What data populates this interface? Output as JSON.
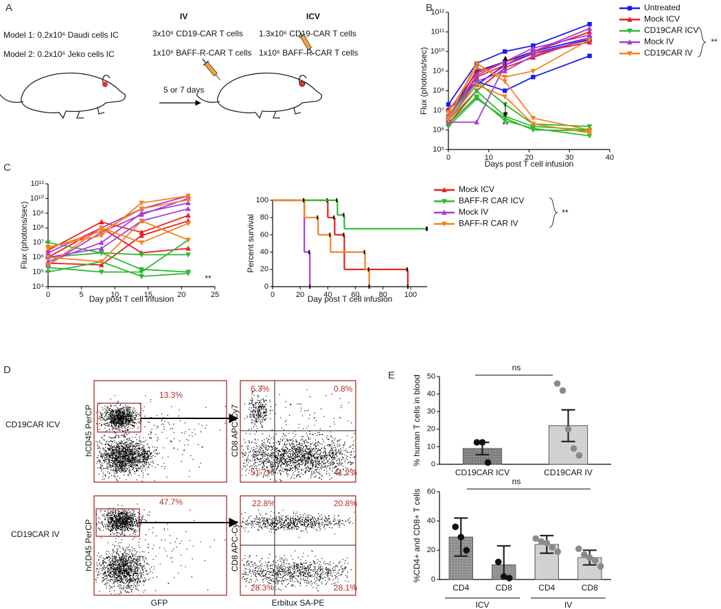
{
  "panel_labels": [
    "A",
    "B",
    "C",
    "D",
    "E"
  ],
  "schematic": {
    "models": [
      "Model 1: 0.2x10⁶ Daudi cells IC",
      "Model 2: 0.2x10⁶ Jeko cells IC"
    ],
    "iv": {
      "title": "IV",
      "doses": [
        "3x10⁶ CD19-CAR T cells",
        "1x10⁶ BAFF-R-CAR T cells"
      ]
    },
    "icv": {
      "title": "ICV",
      "doses": [
        "1.3x10⁶ CD19-CAR T cells",
        "1x10⁶ BAFF-R-CAR T cells"
      ]
    },
    "interval": "5 or 7 days"
  },
  "flow": {
    "rows": [
      {
        "label": "CD19CAR ICV",
        "gate": "13.3%",
        "quadrants": [
          "6.3%",
          "0.8%",
          "51.7%",
          "41.2%"
        ]
      },
      {
        "label": "CD19CAR IV",
        "gate": "47.7%",
        "quadrants": [
          "22.8%",
          "20.8%",
          "28.3%",
          "28.1%"
        ]
      }
    ],
    "x_labels": [
      "GFP",
      "Erbitux SA-PE"
    ],
    "y_labels": [
      "hCD45 PerCP",
      "CD8 APC-Cy7"
    ]
  },
  "chart_data": [
    {
      "type": "line",
      "yscale": "log",
      "ylabel": "Flux (photons/sec)",
      "xlabel": "Days post T cell infusion",
      "x": [
        0,
        7,
        14,
        21,
        35
      ],
      "xlim": [
        0,
        40
      ],
      "xticks": [
        0,
        10,
        20,
        30,
        40
      ],
      "ylim": [
        100000.0,
        1000000000000.0
      ],
      "yticks": [
        {
          "value": 100000.0,
          "label": "10⁵"
        },
        {
          "value": 1000000.0,
          "label": "10⁶"
        },
        {
          "value": 10000000.0,
          "label": "10⁷"
        },
        {
          "value": 100000000.0,
          "label": "10⁸"
        },
        {
          "value": 1000000000.0,
          "label": "10⁹"
        },
        {
          "value": 10000000000.0,
          "label": "10¹⁰"
        },
        {
          "value": 100000000000.0,
          "label": "10¹¹"
        },
        {
          "value": 1000000000000.0,
          "label": "10¹²"
        }
      ],
      "legend": "right",
      "annotations": [
        "**",
        "**"
      ],
      "series": [
        {
          "name": "Untreated",
          "color": "#1a1aee",
          "marker": "square",
          "values": [
            [
              20000000.0,
              2500000000.0,
              10000000000.0,
              20000000000.0,
              250000000000.0
            ],
            [
              10000000.0,
              300000000.0,
              100000000.0,
              500000000.0,
              6000000000.0
            ],
            [
              5000000.0,
              1000000000.0,
              3000000000.0,
              10000000000.0,
              50000000000.0
            ],
            [
              3000000.0,
              200000000.0,
              2000000000.0,
              8000000000.0,
              40000000000.0
            ]
          ]
        },
        {
          "name": "Mock ICV",
          "color": "#ee1c1c",
          "marker": "triangle",
          "values": [
            [
              4000000.0,
              500000000.0,
              2000000000.0,
              10000000000.0,
              100000000000.0
            ],
            [
              2000000.0,
              100000000.0,
              1500000000.0,
              5000000000.0,
              50000000000.0
            ],
            [
              10000000.0,
              800000000.0,
              3000000000.0,
              8000000000.0,
              30000000000.0
            ]
          ]
        },
        {
          "name": "CD19CAR ICV",
          "color": "#2db82d",
          "marker": "triangle-down",
          "values": [
            [
              3000000.0,
              100000000.0,
              5000000.0,
              1500000.0,
              1000000.0
            ],
            [
              2000000.0,
              50000000.0,
              3000000.0,
              1200000.0,
              500000.0
            ],
            [
              5000000.0,
              300000000.0,
              20000000.0,
              2000000.0,
              1500000.0
            ],
            [
              1500000.0,
              40000000.0,
              4000000.0,
              1000000.0,
              900000.0
            ]
          ]
        },
        {
          "name": "Mock IV",
          "color": "#a83bdb",
          "marker": "triangle",
          "values": [
            [
              2500000.0,
              2500000.0,
              2000000000.0,
              10000000000.0,
              150000000000.0
            ],
            [
              5000000.0,
              600000000.0,
              3000000000.0,
              15000000000.0,
              70000000000.0
            ],
            [
              3000000.0,
              300000000.0,
              1000000000.0,
              6000000000.0,
              50000000000.0
            ]
          ]
        },
        {
          "name": "CD19CAR IV",
          "color": "#f7801e",
          "marker": "triangle-down",
          "values": [
            [
              4000000.0,
              2500000000.0,
              300000000.0,
              4000000.0,
              1000000.0
            ],
            [
              8000000.0,
              1500000000.0,
              500000000.0,
              1000000000.0,
              40000000000.0
            ],
            [
              3000000.0,
              200000000.0,
              50000000.0,
              2000000.0,
              700000.0
            ]
          ]
        }
      ]
    },
    {
      "type": "line",
      "yscale": "log",
      "ylabel": "Flux (photons/sec)",
      "xlabel": "Day post T cell infusion",
      "x": [
        0,
        8,
        14,
        21
      ],
      "xlim": [
        0,
        25
      ],
      "xticks": [
        0,
        5,
        10,
        15,
        20,
        25
      ],
      "ylim": [
        10000.0,
        100000000000.0
      ],
      "yticks": [
        {
          "value": 10000.0,
          "label": "10⁴"
        },
        {
          "value": 100000.0,
          "label": "10⁵"
        },
        {
          "value": 1000000.0,
          "label": "10⁶"
        },
        {
          "value": 10000000.0,
          "label": "10⁷"
        },
        {
          "value": 100000000.0,
          "label": "10⁸"
        },
        {
          "value": 1000000000.0,
          "label": "10⁹"
        },
        {
          "value": 10000000000.0,
          "label": "10¹⁰"
        },
        {
          "value": 100000000000.0,
          "label": "10¹¹"
        }
      ],
      "annotations": [
        "**"
      ],
      "series": [
        {
          "color": "#ee1c1c",
          "marker": "triangle",
          "values": [
            [
              3000000.0,
              250000000.0,
              50000000.0,
              700000000.0
            ],
            [
              1000000.0,
              100000000.0,
              2000000.0,
              4000000.0
            ],
            [
              400000.0,
              300000.0,
              30000000.0,
              300000000.0
            ]
          ]
        },
        {
          "color": "#2db82d",
          "marker": "triangle-down",
          "values": [
            [
              10000000.0,
              2000000.0,
              150000.0,
              100000.0
            ],
            [
              100000.0,
              500000.0,
              50000.0,
              80000.0
            ],
            [
              1000000.0,
              2000000.0,
              1500000.0,
              1500000.0
            ],
            [
              200000.0,
              100000.0,
              100000.0,
              15000000.0
            ]
          ]
        },
        {
          "color": "#a83bdb",
          "marker": "triangle",
          "values": [
            [
              2000000.0,
              100000000.0,
              2000000000.0,
              15000000000.0
            ],
            [
              500000.0,
              10000000.0,
              1000000000.0,
              5000000000.0
            ],
            [
              1000000.0,
              4000000.0,
              300000000.0,
              2000000000.0
            ],
            [
              300000.0,
              50000000.0,
              800000000.0,
              10000000000.0
            ]
          ]
        },
        {
          "color": "#f7801e",
          "marker": "triangle-down",
          "values": [
            [
              5000000.0,
              30000000.0,
              5000000000.0,
              15000000000.0
            ],
            [
              300000.0,
              100000000.0,
              10000000.0,
              200000000.0
            ],
            [
              1000000.0,
              500000.0,
              300000000.0,
              15000000.0
            ],
            [
              4000000.0,
              60000000.0,
              2000000000.0,
              8000000000.0
            ]
          ]
        }
      ]
    },
    {
      "type": "survival",
      "ylabel": "Percent survival",
      "xlabel": "Day post T cell infusion",
      "xlim": [
        0,
        112
      ],
      "xticks": [
        0,
        20,
        40,
        60,
        80,
        100
      ],
      "ylim": [
        0,
        100
      ],
      "yticks": [
        0,
        20,
        40,
        60,
        80,
        100
      ],
      "legend": "right",
      "annotations": [
        "**"
      ],
      "series": [
        {
          "name": "Mock ICV",
          "color": "#ee1c1c",
          "marker": "triangle",
          "x": [
            0,
            40,
            45,
            52,
            98
          ],
          "values": [
            100,
            80,
            60,
            20,
            0
          ]
        },
        {
          "name": "BAFF-R CAR ICV",
          "color": "#2db82d",
          "marker": "triangle-down",
          "x": [
            0,
            47,
            52,
            112
          ],
          "values": [
            100,
            83,
            67,
            67
          ]
        },
        {
          "name": "Mock IV",
          "color": "#a83bdb",
          "marker": "triangle",
          "x": [
            0,
            23,
            27
          ],
          "values": [
            100,
            40,
            0
          ]
        },
        {
          "name": "BAFF-R CAR IV",
          "color": "#f7801e",
          "marker": "triangle-down",
          "x": [
            0,
            23,
            33,
            42,
            67,
            70
          ],
          "values": [
            100,
            80,
            60,
            40,
            20,
            0
          ]
        }
      ]
    },
    {
      "type": "bar",
      "ylabel": "% human T cells in blood",
      "categories": [
        "CD19CAR ICV",
        "CD19CAR IV"
      ],
      "values": [
        9,
        22
      ],
      "errors": [
        3.5,
        9
      ],
      "points": [
        [
          12.5,
          12.5,
          1
        ],
        [
          46,
          42,
          20,
          9,
          5
        ]
      ],
      "colors": [
        "#7d7d7d",
        "#cfcfcf"
      ],
      "point_colors": [
        "#111111",
        "#8a8a8a"
      ],
      "ylim": [
        0,
        50
      ],
      "yticks": [
        0,
        10,
        20,
        30,
        40,
        50
      ],
      "annotations": [
        "ns"
      ]
    },
    {
      "type": "bar",
      "ylabel": "%CD4+ and  CD8+ T cells",
      "categories": [
        "CD4",
        "CD8",
        "CD4",
        "CD8"
      ],
      "groups": [
        "ICV",
        "IV"
      ],
      "values": [
        29,
        10,
        24,
        15
      ],
      "errors": [
        13,
        13,
        6,
        5
      ],
      "points": [
        [
          36,
          29,
          20
        ],
        [
          12,
          2,
          1
        ],
        [
          28,
          26,
          25,
          22,
          19
        ],
        [
          21,
          17,
          15,
          13,
          9
        ]
      ],
      "colors": [
        "#8c8c8c",
        "#8c8c8c",
        "#cfcfcf",
        "#cfcfcf"
      ],
      "point_colors": [
        "#111111",
        "#111111",
        "#8a8a8a",
        "#8a8a8a"
      ],
      "ylim": [
        0,
        60
      ],
      "yticks": [
        0,
        20,
        40,
        60
      ],
      "annotations": [
        "ns"
      ]
    }
  ]
}
